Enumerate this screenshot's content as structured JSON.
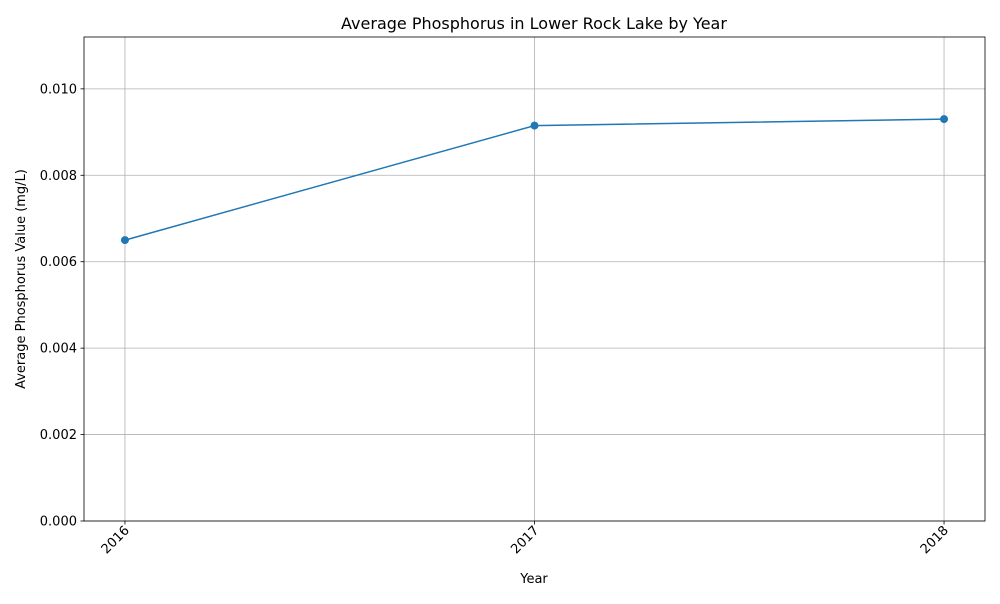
{
  "chart_data": {
    "type": "line",
    "title": "Average Phosphorus in Lower Rock Lake by Year",
    "xlabel": "Year",
    "ylabel": "Average Phosphorus Value (mg/L)",
    "x": [
      "2016",
      "2017",
      "2018"
    ],
    "series": [
      {
        "values": [
          0.0065,
          0.00915,
          0.0093
        ]
      }
    ],
    "xlim": [
      "2016",
      "2018"
    ],
    "ylim": [
      0,
      0.0112
    ],
    "yticks": [
      "0.000",
      "0.002",
      "0.004",
      "0.006",
      "0.008",
      "0.010"
    ],
    "xtick_rotation": "45 degrees",
    "grid": true,
    "markers": "circle",
    "legend": "none",
    "colors": {
      "line": "#1f77b4",
      "grid": "#b0b0b0",
      "axis": "#000000"
    }
  }
}
